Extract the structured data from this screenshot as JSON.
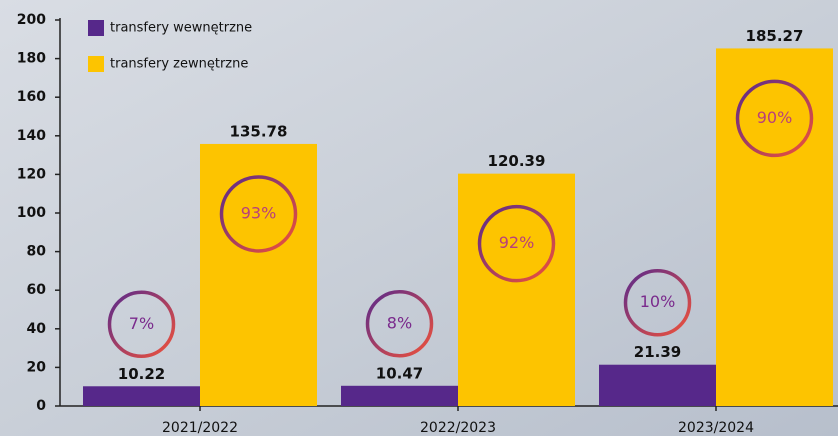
{
  "chart_data": {
    "type": "bar",
    "categories": [
      "2021/2022",
      "2022/2023",
      "2023/2024"
    ],
    "series": [
      {
        "name": "transfery wewnętrzne",
        "color": "#56288a",
        "values": [
          10.22,
          10.47,
          21.39
        ],
        "share_labels": [
          "7%",
          "8%",
          "10%"
        ],
        "share_color": "#7a2a8c"
      },
      {
        "name": "transfery zewnętrzne",
        "color": "#fdc400",
        "values": [
          135.78,
          120.39,
          185.27
        ],
        "share_labels": [
          "93%",
          "92%",
          "90%"
        ],
        "share_color": "#b8407a"
      }
    ],
    "ylim": [
      0,
      200
    ],
    "yticks": [
      0,
      20,
      40,
      60,
      80,
      100,
      120,
      140,
      160,
      180,
      200
    ],
    "grid": false
  }
}
